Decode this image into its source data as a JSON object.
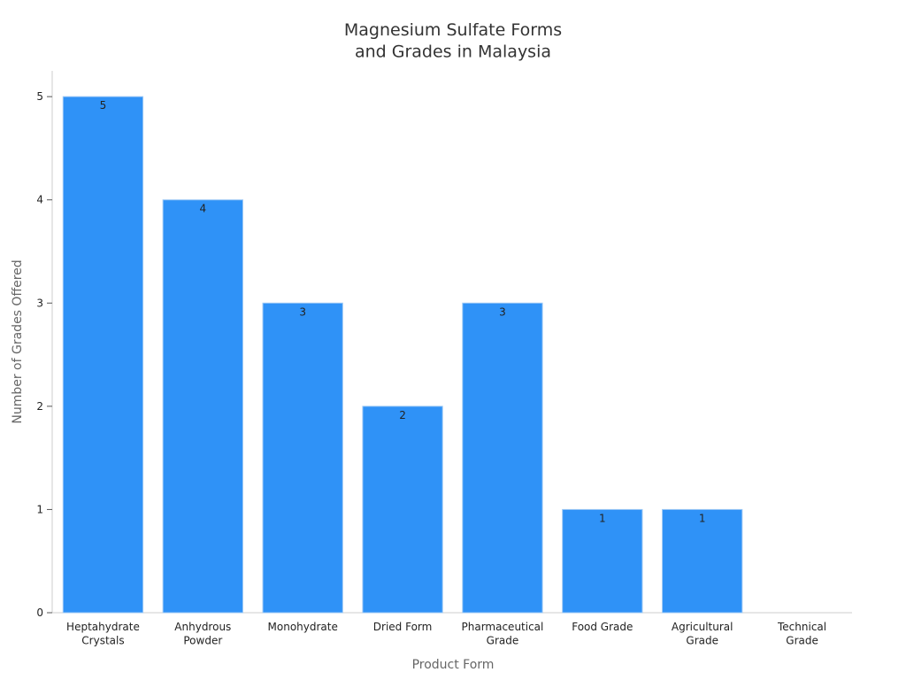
{
  "chart_data": {
    "type": "bar",
    "title": "Magnesium Sulfate Forms\nand Grades in Malaysia",
    "x_label": "Product Form",
    "y_label": "Number of Grades Offered",
    "categories": [
      "Heptahydrate\nCrystals",
      "Anhydrous\nPowder",
      "Monohydrate",
      "Dried Form",
      "Pharmaceutical\nGrade",
      "Food Grade",
      "Agricultural\nGrade",
      "Technical\nGrade"
    ],
    "values": [
      5,
      4,
      3,
      2,
      3,
      1,
      1,
      null
    ],
    "color": "#2f92f7",
    "ylim": [
      0,
      5.25
    ],
    "yticks": [
      0,
      1,
      2,
      3,
      4,
      5
    ],
    "grid": false
  }
}
